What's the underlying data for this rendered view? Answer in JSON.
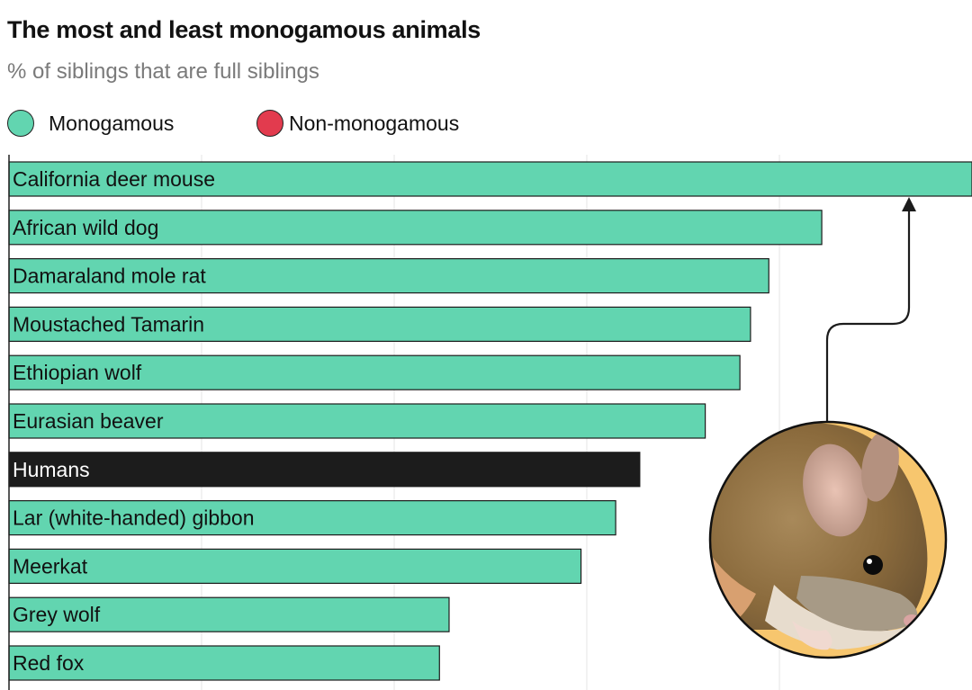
{
  "title": "The most and least monogamous animals",
  "subtitle": "% of siblings that are full siblings",
  "legend": [
    {
      "label": "Monogamous",
      "color": "#62d5b0"
    },
    {
      "label": "Non-monogamous",
      "color": "#e23b4e"
    }
  ],
  "colors": {
    "monogamous": "#62d5b0",
    "non_monogamous": "#e23b4e",
    "humans": "#1c1c1c",
    "label_dark": "#111111",
    "label_light": "#ffffff"
  },
  "illustration": {
    "subject": "California deer mouse",
    "icon": "mouse-photo-icon"
  },
  "chart_data": {
    "type": "bar",
    "orientation": "horizontal",
    "categories": [
      "California deer mouse",
      "African wild dog",
      "Damaraland mole rat",
      "Moustached Tamarin",
      "Ethiopian wolf",
      "Eurasian beaver",
      "Humans",
      "Lar (white-handed) gibbon",
      "Meerkat",
      "Grey wolf",
      "Red fox"
    ],
    "values": [
      100,
      84.4,
      78.9,
      77.0,
      75.9,
      72.3,
      65.5,
      63.0,
      59.4,
      45.7,
      44.7
    ],
    "groups": [
      "monogamous",
      "monogamous",
      "monogamous",
      "monogamous",
      "monogamous",
      "monogamous",
      "humans",
      "monogamous",
      "monogamous",
      "monogamous",
      "monogamous"
    ],
    "xlim": [
      0,
      100
    ],
    "grid": true,
    "legend_position": "top-left"
  }
}
